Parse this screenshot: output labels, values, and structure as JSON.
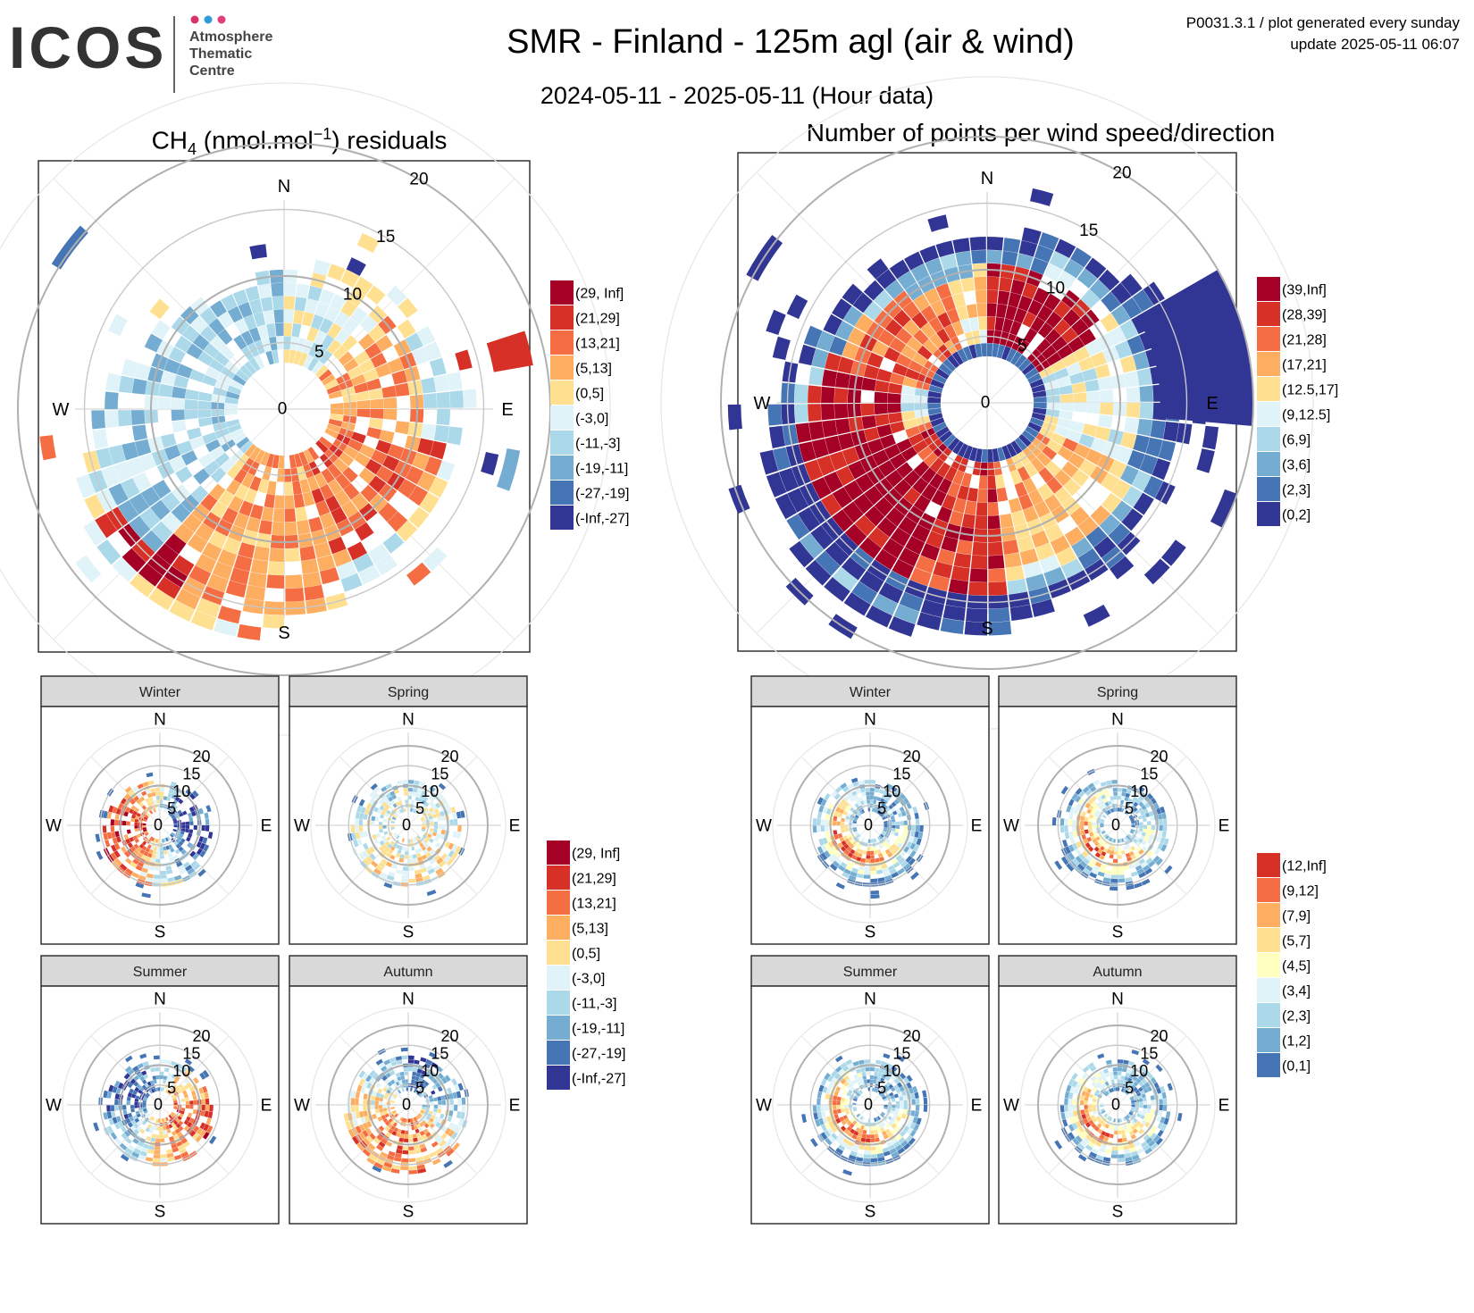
{
  "header": {
    "logo_text": "ICOS",
    "logo_sub": "Atmosphere\nThematic\nCentre",
    "logo_dot_colors": [
      "#d6336c",
      "#2f9bd8",
      "#e0407a"
    ],
    "title": "SMR - Finland - 125m agl (air & wind)",
    "subtitle": "2024-05-11 - 2025-05-11 (Hour data)",
    "meta_line1": "P0031.3.1 / plot generated every sunday",
    "meta_line2": "update  2025-05-11 06:07"
  },
  "left_panel": {
    "title_prefix": "CH",
    "title_sub": "4",
    "title_mid": " (nmol.mol",
    "title_sup": "−1",
    "title_suffix": ") residuals"
  },
  "right_panel": {
    "title": "Number of points per wind speed/direction"
  },
  "compass": {
    "n": "N",
    "e": "E",
    "s": "S",
    "w": "W"
  },
  "speed_ticks": [
    "0",
    "5",
    "10",
    "15",
    "20"
  ],
  "seasons": [
    "Winter",
    "Spring",
    "Summer",
    "Autumn"
  ],
  "legends": {
    "residuals": {
      "labels": [
        "(29, Inf]",
        "(21,29]",
        "(13,21]",
        "(5,13]",
        "(0,5]",
        "(-3,0]",
        "(-11,-3]",
        "(-19,-11]",
        "(-27,-19]",
        "(-Inf,-27]"
      ],
      "colors": [
        "#a50026",
        "#d73027",
        "#f46d43",
        "#fdae61",
        "#fee090",
        "#e0f3f8",
        "#abd9e9",
        "#74add1",
        "#4575b4",
        "#313695"
      ]
    },
    "counts": {
      "labels": [
        "(39,Inf]",
        "(28,39]",
        "(21,28]",
        "(17,21]",
        "(12.5,17]",
        "(9,12.5]",
        "(6,9]",
        "(3,6]",
        "(2,3]",
        "(0,2]"
      ],
      "colors": [
        "#a50026",
        "#d73027",
        "#f46d43",
        "#fdae61",
        "#fee090",
        "#e0f3f8",
        "#abd9e9",
        "#74add1",
        "#4575b4",
        "#313695"
      ]
    },
    "residuals_season": {
      "labels": [
        "(29, Inf]",
        "(21,29]",
        "(13,21]",
        "(5,13]",
        "(0,5]",
        "(-3,0]",
        "(-11,-3]",
        "(-19,-11]",
        "(-27,-19]",
        "(-Inf,-27]"
      ],
      "colors": [
        "#a50026",
        "#d73027",
        "#f46d43",
        "#fdae61",
        "#fee090",
        "#e0f3f8",
        "#abd9e9",
        "#74add1",
        "#4575b4",
        "#313695"
      ]
    },
    "counts_season": {
      "labels": [
        "(12,Inf]",
        "(9,12]",
        "(7,9]",
        "(5,7]",
        "(4,5]",
        "(3,4]",
        "(2,3]",
        "(1,2]",
        "(0,1]"
      ],
      "colors": [
        "#d73027",
        "#f46d43",
        "#fdae61",
        "#fee090",
        "#ffffbf",
        "#e0f3f8",
        "#abd9e9",
        "#74add1",
        "#4575b4"
      ]
    }
  },
  "chart_data": [
    {
      "type": "heatmap",
      "name": "CH4 residuals polar",
      "axes": "wind direction (deg) x wind speed (m/s)",
      "rlim": [
        0,
        25
      ],
      "r_ticks": [
        0,
        5,
        10,
        15,
        20
      ],
      "sectors": [
        {
          "dir_range": [
            0,
            45
          ],
          "speed_range": [
            2,
            16
          ],
          "class": "(-3,0]"
        },
        {
          "dir_range": [
            45,
            100
          ],
          "speed_range": [
            2,
            10
          ],
          "class": "(5,13]"
        },
        {
          "dir_range": [
            65,
            85
          ],
          "speed_range": [
            14,
            19
          ],
          "class": "(21,29]"
        },
        {
          "dir_range": [
            100,
            160
          ],
          "speed_range": [
            2,
            12
          ],
          "class": "(13,21]"
        },
        {
          "dir_range": [
            120,
            160
          ],
          "speed_range": [
            14,
            17
          ],
          "class": "(29, Inf]"
        },
        {
          "dir_range": [
            160,
            220
          ],
          "speed_range": [
            2,
            16
          ],
          "class": "(5,13]"
        },
        {
          "dir_range": [
            205,
            240
          ],
          "speed_range": [
            12,
            16
          ],
          "class": "(29, Inf]"
        },
        {
          "dir_range": [
            220,
            300
          ],
          "speed_range": [
            2,
            14
          ],
          "class": "(-11,-3]"
        },
        {
          "dir_range": [
            290,
            330
          ],
          "speed_range": [
            10,
            16
          ],
          "class": "(-27,-19]"
        },
        {
          "dir_range": [
            300,
            360
          ],
          "speed_range": [
            2,
            14
          ],
          "class": "(-11,-3]"
        }
      ]
    },
    {
      "type": "heatmap",
      "name": "Number of points per wind speed/direction",
      "axes": "wind direction (deg) x wind speed (m/s)",
      "rlim": [
        0,
        25
      ],
      "r_ticks": [
        0,
        5,
        10,
        15,
        20
      ],
      "sectors": [
        {
          "dir_range": [
            0,
            60
          ],
          "speed_range": [
            4,
            10
          ],
          "class": "(39,Inf]"
        },
        {
          "dir_range": [
            60,
            110
          ],
          "speed_range": [
            4,
            12
          ],
          "class": "(9,12.5]"
        },
        {
          "dir_range": [
            60,
            100
          ],
          "speed_range": [
            12,
            18
          ],
          "class": "(0,2]"
        },
        {
          "dir_range": [
            110,
            170
          ],
          "speed_range": [
            4,
            12
          ],
          "class": "(17,21]"
        },
        {
          "dir_range": [
            170,
            250
          ],
          "speed_range": [
            4,
            14
          ],
          "class": "(28,39]"
        },
        {
          "dir_range": [
            200,
            280
          ],
          "speed_range": [
            6,
            14
          ],
          "class": "(39,Inf]"
        },
        {
          "dir_range": [
            280,
            340
          ],
          "speed_range": [
            4,
            16
          ],
          "class": "(21,28]"
        },
        {
          "dir_range": [
            340,
            360
          ],
          "speed_range": [
            4,
            12
          ],
          "class": "(12.5,17]"
        },
        {
          "dir_range": [
            0,
            360
          ],
          "speed_range": [
            14,
            16
          ],
          "class": "(0,2]"
        }
      ]
    }
  ]
}
